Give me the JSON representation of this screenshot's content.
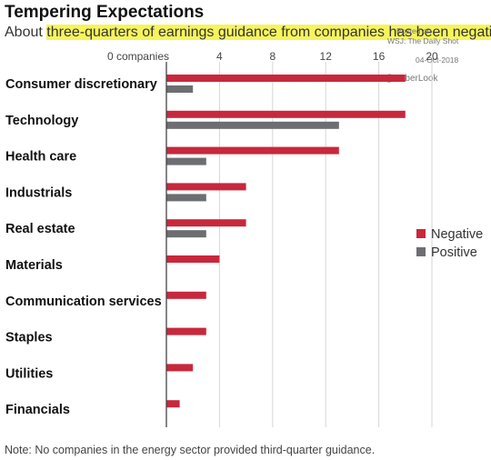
{
  "header": {
    "title": "Tempering Expectations",
    "subtitle_pre": "About ",
    "subtitle_highlight": "three-quarters of earnings guidance from companies has been negative."
  },
  "credits": {
    "line1": "Posted on",
    "line2": "WSJ: The Daily Shot",
    "line3": "04-Oct-2018",
    "line4": "@SoberLook"
  },
  "footer": {
    "note": "Note: No companies in the energy sector provided third-quarter guidance."
  },
  "colors": {
    "negative": "#c8283c",
    "positive": "#6d6e71",
    "highlight": "#f6f45c"
  },
  "chart_data": {
    "type": "bar",
    "orientation": "horizontal",
    "categories": [
      "Consumer discretionary",
      "Technology",
      "Health care",
      "Industrials",
      "Real estate",
      "Materials",
      "Communication services",
      "Staples",
      "Utilities",
      "Financials"
    ],
    "series": [
      {
        "name": "Negative",
        "values": [
          18,
          18,
          13,
          6,
          6,
          4,
          3,
          3,
          2,
          1
        ]
      },
      {
        "name": "Positive",
        "values": [
          2,
          13,
          3,
          3,
          3,
          0,
          0,
          0,
          0,
          0
        ]
      }
    ],
    "tick_labels": [
      "0 companies",
      "4",
      "8",
      "12",
      "16",
      "20"
    ],
    "tick_values": [
      0,
      4,
      8,
      12,
      16,
      20
    ],
    "xlim": [
      0,
      20
    ],
    "grid": true,
    "legend": "right"
  }
}
